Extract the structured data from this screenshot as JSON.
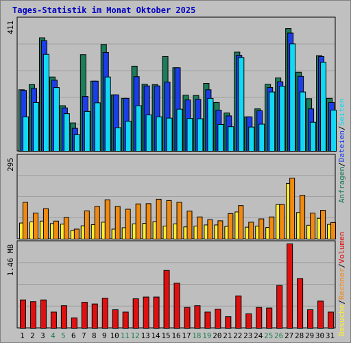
{
  "title": "Tages-Statistik im Monat Oktober 2025",
  "colors": {
    "background": "#c0c0c0",
    "plot": "#bebebe",
    "grid": "#a0a0a0",
    "title": "#0000c0",
    "anfragen": "#1d7c5a",
    "dateien": "#1b3ee8",
    "seiten": "#12d8f4",
    "besuche": "#ffee33",
    "rechner": "#f08a10",
    "volumen": "#e01010",
    "weekend": "#208050",
    "weekday": "#000000"
  },
  "legend": {
    "right_top": [
      {
        "label": "Anfragen",
        "color": "#1d7c5a"
      },
      {
        "label": "Dateien",
        "color": "#1b3ee8"
      },
      {
        "label": "Seiten",
        "color": "#12d8f4"
      }
    ],
    "right_bottom": [
      {
        "label": "Besuche",
        "color": "#ffee33"
      },
      {
        "label": "Rechner",
        "color": "#f08a10"
      },
      {
        "label": "Volumen",
        "color": "#e01010"
      }
    ],
    "separator": "/"
  },
  "chart_data": [
    {
      "type": "bar",
      "panel": "requests",
      "ymax_label": "411",
      "ylim": [
        0,
        411
      ],
      "categories": [
        "1",
        "2",
        "3",
        "4",
        "5",
        "6",
        "7",
        "8",
        "9",
        "10",
        "11",
        "12",
        "13",
        "14",
        "15",
        "16",
        "17",
        "18",
        "19",
        "20",
        "21",
        "22",
        "23",
        "24",
        "25",
        "26",
        "27",
        "28",
        "29",
        "30",
        "31"
      ],
      "weekend_days": [
        "4",
        "5",
        "11",
        "12",
        "18",
        "19",
        "25",
        "26"
      ],
      "series": [
        {
          "name": "Anfragen",
          "values": [
            193,
            209,
            356,
            233,
            143,
            89,
            303,
            220,
            335,
            177,
            166,
            267,
            210,
            209,
            297,
            262,
            176,
            175,
            213,
            153,
            120,
            311,
            108,
            133,
            210,
            230,
            385,
            248,
            165,
            300,
            166
          ]
        },
        {
          "name": "Dateien",
          "values": [
            191,
            197,
            347,
            223,
            136,
            72,
            172,
            220,
            310,
            177,
            166,
            234,
            205,
            205,
            217,
            262,
            161,
            163,
            193,
            129,
            111,
            301,
            108,
            127,
            200,
            218,
            371,
            235,
            133,
            297,
            153
          ]
        },
        {
          "name": "Seiten",
          "values": [
            108,
            153,
            304,
            200,
            118,
            52,
            125,
            152,
            233,
            74,
            94,
            143,
            114,
            108,
            104,
            132,
            103,
            102,
            166,
            84,
            77,
            294,
            76,
            85,
            186,
            204,
            337,
            186,
            91,
            279,
            129
          ]
        }
      ]
    },
    {
      "type": "bar",
      "panel": "visits",
      "ymax_label": "295",
      "ylim": [
        0,
        295
      ],
      "categories": [
        "1",
        "2",
        "3",
        "4",
        "5",
        "6",
        "7",
        "8",
        "9",
        "10",
        "11",
        "12",
        "13",
        "14",
        "15",
        "16",
        "17",
        "18",
        "19",
        "20",
        "21",
        "22",
        "23",
        "24",
        "25",
        "26",
        "27",
        "28",
        "29",
        "30",
        "31"
      ],
      "series": [
        {
          "name": "Besuche",
          "values": [
            58,
            62,
            65,
            56,
            54,
            31,
            48,
            52,
            61,
            36,
            41,
            55,
            57,
            63,
            47,
            55,
            44,
            47,
            51,
            51,
            46,
            98,
            43,
            47,
            42,
            125,
            201,
            96,
            50,
            75,
            53
          ]
        },
        {
          "name": "Rechner",
          "values": [
            133,
            94,
            110,
            65,
            78,
            36,
            102,
            118,
            142,
            118,
            108,
            127,
            128,
            144,
            139,
            133,
            101,
            80,
            70,
            66,
            92,
            121,
            61,
            73,
            80,
            125,
            220,
            158,
            94,
            104,
            60
          ]
        }
      ]
    },
    {
      "type": "bar",
      "panel": "volume",
      "ymax_label": "1.46 MB",
      "ylim": [
        0,
        1.46
      ],
      "categories": [
        "1",
        "2",
        "3",
        "4",
        "5",
        "6",
        "7",
        "8",
        "9",
        "10",
        "11",
        "12",
        "13",
        "14",
        "15",
        "16",
        "17",
        "18",
        "19",
        "20",
        "21",
        "22",
        "23",
        "24",
        "25",
        "26",
        "27",
        "28",
        "29",
        "30",
        "31"
      ],
      "series": [
        {
          "name": "Volumen",
          "values": [
            0.49,
            0.46,
            0.49,
            0.28,
            0.39,
            0.18,
            0.45,
            0.42,
            0.52,
            0.32,
            0.28,
            0.51,
            0.54,
            0.54,
            1.0,
            0.78,
            0.36,
            0.39,
            0.28,
            0.33,
            0.2,
            0.56,
            0.25,
            0.36,
            0.35,
            0.74,
            1.46,
            0.86,
            0.32,
            0.47,
            0.28
          ]
        }
      ]
    }
  ]
}
